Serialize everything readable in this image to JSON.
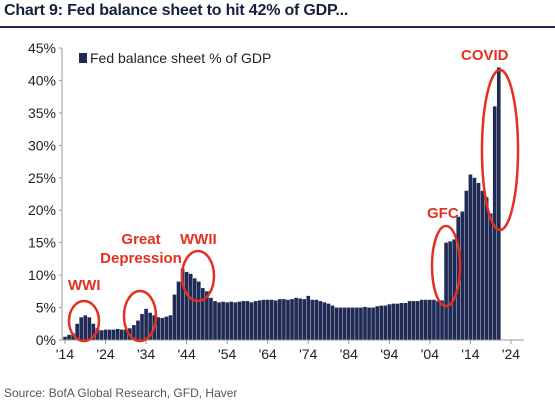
{
  "title": "Chart 9: Fed balance sheet to hit 42% of GDP...",
  "source": "Source: BofA Global Research, GFD, Haver",
  "colors": {
    "bar": "#1f2a55",
    "annotation": "#e53020",
    "title": "#14213d"
  },
  "chart_data": {
    "type": "bar",
    "title": "Chart 9: Fed balance sheet to hit 42% of GDP...",
    "xlabel": "",
    "ylabel": "",
    "ylim": [
      0,
      45
    ],
    "xlim": [
      1914,
      2025
    ],
    "yticks": [
      "0%",
      "5%",
      "10%",
      "15%",
      "20%",
      "25%",
      "30%",
      "35%",
      "40%",
      "45%"
    ],
    "xticks": [
      "'14",
      "'24",
      "'34",
      "'44",
      "'54",
      "'64",
      "'74",
      "'84",
      "'94",
      "'04",
      "'14",
      "'24"
    ],
    "legend": {
      "position": "top-left"
    },
    "series": [
      {
        "name": "Fed balance sheet % of GDP",
        "x": [
          1914,
          1915,
          1916,
          1917,
          1918,
          1919,
          1920,
          1921,
          1922,
          1923,
          1924,
          1925,
          1926,
          1927,
          1928,
          1929,
          1930,
          1931,
          1932,
          1933,
          1934,
          1935,
          1936,
          1937,
          1938,
          1939,
          1940,
          1941,
          1942,
          1943,
          1944,
          1945,
          1946,
          1947,
          1948,
          1949,
          1950,
          1951,
          1952,
          1953,
          1954,
          1955,
          1956,
          1957,
          1958,
          1959,
          1960,
          1961,
          1962,
          1963,
          1964,
          1965,
          1966,
          1967,
          1968,
          1969,
          1970,
          1971,
          1972,
          1973,
          1974,
          1975,
          1976,
          1977,
          1978,
          1979,
          1980,
          1981,
          1982,
          1983,
          1984,
          1985,
          1986,
          1987,
          1988,
          1989,
          1990,
          1991,
          1992,
          1993,
          1994,
          1995,
          1996,
          1997,
          1998,
          1999,
          2000,
          2001,
          2002,
          2003,
          2004,
          2005,
          2006,
          2007,
          2008,
          2009,
          2010,
          2011,
          2012,
          2013,
          2014,
          2015,
          2016,
          2017,
          2018,
          2019,
          2020,
          2021
        ],
        "values": [
          0.5,
          0.8,
          1.0,
          2.5,
          3.5,
          3.8,
          3.5,
          2.5,
          1.8,
          1.5,
          1.6,
          1.6,
          1.6,
          1.7,
          1.6,
          1.6,
          1.8,
          2.3,
          3.0,
          4.0,
          4.8,
          4.2,
          3.8,
          3.5,
          3.4,
          3.6,
          3.8,
          7.0,
          9.0,
          11.0,
          10.5,
          10.2,
          9.5,
          9.0,
          8.0,
          7.5,
          6.5,
          6.0,
          5.8,
          5.9,
          5.8,
          5.9,
          5.8,
          5.9,
          6.0,
          6.0,
          5.8,
          6.0,
          6.1,
          6.2,
          6.2,
          6.2,
          6.1,
          6.3,
          6.3,
          6.2,
          6.3,
          6.5,
          6.4,
          6.3,
          6.8,
          6.2,
          6.2,
          6.0,
          5.8,
          5.6,
          5.3,
          5.0,
          5.0,
          5.0,
          5.0,
          5.0,
          5.0,
          5.0,
          5.1,
          5.0,
          5.0,
          5.2,
          5.3,
          5.3,
          5.5,
          5.6,
          5.6,
          5.7,
          5.7,
          6.0,
          6.0,
          6.0,
          6.2,
          6.2,
          6.2,
          6.2,
          6.0,
          6.1,
          15.0,
          15.2,
          15.5,
          19.0,
          19.8,
          23.0,
          25.5,
          25.0,
          24.2,
          23.0,
          22.0,
          19.5,
          36.0,
          42.0
        ]
      }
    ],
    "annotations": [
      {
        "label": "WWI",
        "lines": [
          "WWI"
        ]
      },
      {
        "label": "Great Depression",
        "lines": [
          "Great",
          "Depression"
        ]
      },
      {
        "label": "WWII",
        "lines": [
          "WWII"
        ]
      },
      {
        "label": "GFC",
        "lines": [
          "GFC"
        ]
      },
      {
        "label": "COVID",
        "lines": [
          "COVID"
        ]
      }
    ]
  }
}
